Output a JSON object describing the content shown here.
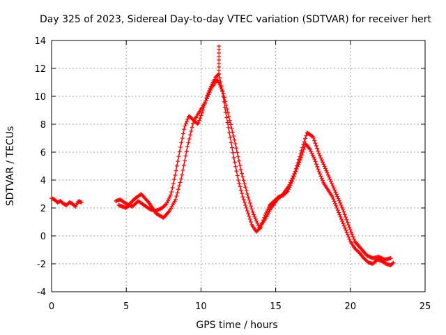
{
  "chart_data": {
    "type": "scatter",
    "title": "Day 325 of 2023, Sidereal Day-to-day VTEC variation (SDTVAR) for receiver hert",
    "xlabel": "GPS time / hours",
    "ylabel": "SDTVAR / TECUs",
    "xlim": [
      0,
      25
    ],
    "ylim": [
      -4,
      14
    ],
    "x_ticks": [
      0,
      5,
      10,
      15,
      20,
      25
    ],
    "y_ticks": [
      -4,
      -2,
      0,
      2,
      4,
      6,
      8,
      10,
      12,
      14
    ],
    "grid": true,
    "marker": "+",
    "series_color": "#ff0000",
    "series": [
      {
        "name": "segment-1",
        "x": [
          0.0,
          0.2,
          0.4,
          0.6,
          0.8,
          1.0,
          1.2,
          1.4,
          1.6,
          1.8,
          2.0
        ],
        "y": [
          2.7,
          2.6,
          2.4,
          2.5,
          2.3,
          2.2,
          2.4,
          2.3,
          2.1,
          2.5,
          2.4
        ]
      },
      {
        "name": "segment-2",
        "x": [
          4.3,
          4.6,
          5.0,
          5.4,
          5.8,
          6.2,
          6.6,
          7.0,
          7.4,
          7.7,
          8.0,
          8.3,
          8.6,
          8.9,
          9.2,
          9.5,
          9.8,
          10.1,
          10.4,
          10.7,
          11.0,
          11.2,
          11.4,
          11.6,
          11.9,
          12.2,
          12.5,
          12.8,
          13.1,
          13.4,
          13.7,
          14.0,
          14.3,
          14.6,
          14.9,
          15.2,
          15.5,
          15.8,
          16.1,
          16.4,
          16.7,
          17.0,
          17.3,
          17.6,
          17.9,
          18.2,
          18.5,
          18.8,
          19.1,
          19.4,
          19.7,
          20.0,
          20.3,
          20.6,
          20.9,
          21.2,
          21.5,
          21.8,
          22.1,
          22.4,
          22.7,
          22.9
        ],
        "y": [
          2.5,
          2.6,
          2.3,
          2.1,
          2.5,
          2.2,
          1.9,
          1.8,
          2.0,
          2.3,
          3.0,
          4.5,
          6.2,
          7.8,
          8.6,
          8.3,
          8.0,
          8.9,
          10.0,
          10.8,
          11.4,
          11.6,
          10.6,
          9.2,
          7.4,
          5.6,
          4.0,
          2.8,
          1.8,
          0.8,
          0.3,
          0.6,
          1.5,
          2.2,
          2.5,
          2.8,
          2.9,
          3.2,
          3.9,
          4.8,
          5.6,
          6.6,
          6.2,
          5.5,
          4.6,
          3.8,
          3.3,
          2.8,
          2.0,
          1.2,
          0.4,
          -0.4,
          -0.9,
          -1.2,
          -1.6,
          -1.9,
          -2.0,
          -1.7,
          -1.8,
          -2.0,
          -2.1,
          -1.9
        ]
      },
      {
        "name": "segment-3",
        "x": [
          4.5,
          5.0,
          5.5,
          6.0,
          6.5,
          7.0,
          7.5,
          7.9,
          8.3,
          8.7,
          9.1,
          9.5,
          9.9,
          10.3,
          10.7,
          11.1,
          11.5,
          11.9,
          12.3,
          12.7,
          13.1,
          13.5,
          13.9,
          14.3,
          14.7,
          15.1,
          15.5,
          15.9,
          16.3,
          16.7,
          17.1,
          17.5,
          17.9,
          18.3,
          18.7,
          19.1,
          19.5,
          19.9,
          20.3,
          20.7,
          21.1,
          21.5,
          21.9,
          22.3,
          22.7
        ],
        "y": [
          2.2,
          2.0,
          2.6,
          3.0,
          2.4,
          1.6,
          1.3,
          1.8,
          2.6,
          4.2,
          6.4,
          8.2,
          8.9,
          9.6,
          10.6,
          11.2,
          10.2,
          8.4,
          6.6,
          4.6,
          3.0,
          1.6,
          0.6,
          1.2,
          2.0,
          2.6,
          3.0,
          3.6,
          4.6,
          6.0,
          7.4,
          7.1,
          5.9,
          4.9,
          3.9,
          2.9,
          1.9,
          0.7,
          -0.4,
          -0.9,
          -1.4,
          -1.6,
          -1.5,
          -1.7,
          -1.6
        ]
      }
    ],
    "peak_annotation": {
      "x": 11.2,
      "y": 13.7
    }
  }
}
